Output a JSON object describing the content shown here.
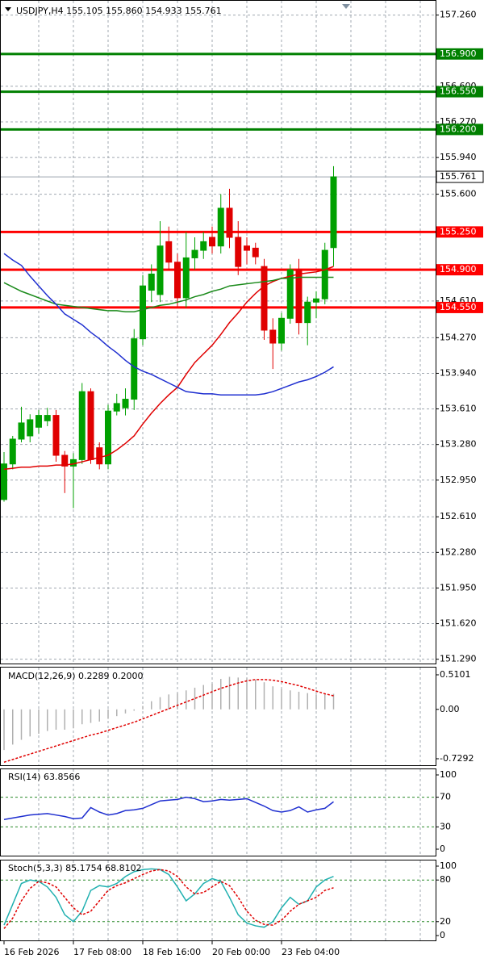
{
  "chart_data": [
    {
      "type": "candlestick",
      "title": "USDJPY,H4  155.105 155.860 154.933 155.761",
      "categories": [
        "16 Feb 2026",
        null,
        null,
        null,
        null,
        null,
        null,
        null,
        "17 Feb 08:00",
        null,
        null,
        null,
        null,
        null,
        null,
        null,
        "18 Feb 16:00",
        null,
        null,
        null,
        null,
        null,
        null,
        null,
        "20 Feb 00:00",
        null,
        null,
        null,
        null,
        null,
        null,
        null,
        "23 Feb 04:00",
        null,
        null,
        null,
        null,
        null,
        null
      ],
      "candles": {
        "up_color": "#00a000",
        "down_color": "#e00000",
        "open": [
          152.77,
          153.1,
          153.33,
          153.36,
          153.44,
          153.5,
          153.55,
          153.18,
          153.08,
          153.14,
          153.77,
          153.25,
          153.1,
          153.59,
          153.62,
          153.7,
          154.26,
          154.71,
          154.67,
          155.16,
          154.97,
          154.64,
          155.01,
          155.08,
          155.2,
          155.12,
          155.47,
          155.2,
          155.12,
          155.1,
          154.93,
          154.34,
          154.22,
          154.45,
          154.9,
          154.41,
          154.6,
          154.63,
          155.105
        ],
        "high": [
          153.21,
          153.36,
          153.63,
          153.56,
          153.6,
          153.62,
          153.6,
          153.22,
          153.2,
          153.85,
          153.8,
          153.3,
          153.65,
          153.75,
          153.8,
          154.35,
          154.85,
          154.95,
          155.35,
          155.3,
          155.05,
          155.25,
          155.2,
          155.25,
          155.3,
          155.6,
          155.65,
          155.35,
          155.2,
          155.15,
          155.0,
          154.45,
          154.5,
          154.95,
          155.0,
          154.65,
          154.7,
          155.15,
          155.86
        ],
        "low": [
          152.75,
          153.05,
          153.3,
          153.3,
          153.38,
          153.45,
          153.12,
          152.83,
          152.69,
          153.1,
          153.1,
          153.05,
          153.05,
          153.55,
          153.55,
          153.6,
          154.2,
          154.6,
          154.6,
          154.9,
          154.55,
          154.55,
          154.9,
          155.0,
          155.05,
          155.05,
          155.1,
          154.85,
          154.95,
          154.95,
          154.25,
          153.98,
          154.15,
          154.4,
          154.3,
          154.2,
          154.45,
          154.58,
          154.933
        ],
        "close": [
          153.1,
          153.33,
          153.48,
          153.51,
          153.55,
          153.55,
          153.18,
          153.08,
          153.14,
          153.77,
          153.14,
          153.1,
          153.59,
          153.66,
          153.7,
          154.26,
          154.75,
          154.86,
          155.12,
          154.97,
          154.64,
          155.01,
          155.08,
          155.16,
          155.12,
          155.47,
          155.2,
          154.93,
          155.08,
          155.02,
          154.34,
          154.22,
          154.45,
          154.9,
          154.41,
          154.6,
          154.63,
          155.08,
          155.761
        ]
      },
      "lines": [
        {
          "color": "#e00000",
          "values": [
            153.05,
            153.06,
            153.07,
            153.07,
            153.08,
            153.08,
            153.09,
            153.09,
            153.1,
            153.12,
            153.14,
            153.16,
            153.18,
            153.23,
            153.29,
            153.36,
            153.47,
            153.57,
            153.66,
            153.74,
            153.81,
            153.93,
            154.04,
            154.12,
            154.2,
            154.3,
            154.41,
            154.5,
            154.6,
            154.68,
            154.75,
            154.79,
            154.82,
            154.84,
            154.86,
            154.87,
            154.88,
            154.9,
            154.93
          ]
        },
        {
          "color": "#1a8a1a",
          "values": [
            154.78,
            154.74,
            154.7,
            154.67,
            154.64,
            154.61,
            154.58,
            154.57,
            154.56,
            154.55,
            154.54,
            154.53,
            154.52,
            154.52,
            154.51,
            154.51,
            154.53,
            154.55,
            154.57,
            154.58,
            154.6,
            154.62,
            154.65,
            154.67,
            154.7,
            154.72,
            154.75,
            154.76,
            154.77,
            154.78,
            154.79,
            154.8,
            154.82,
            154.82,
            154.83,
            154.83,
            154.83,
            154.83,
            154.83
          ]
        },
        {
          "color": "#1f2fd0",
          "values": [
            155.05,
            154.99,
            154.94,
            154.84,
            154.75,
            154.66,
            154.58,
            154.49,
            154.44,
            154.39,
            154.32,
            154.26,
            154.19,
            154.13,
            154.06,
            154.0,
            153.96,
            153.93,
            153.89,
            153.85,
            153.81,
            153.77,
            153.76,
            153.75,
            153.75,
            153.74,
            153.74,
            153.74,
            153.74,
            153.74,
            153.75,
            153.77,
            153.8,
            153.83,
            153.86,
            153.88,
            153.91,
            153.95,
            154.0
          ]
        }
      ],
      "levels": [
        {
          "value": 156.9,
          "label": "156.900",
          "color": "#008000"
        },
        {
          "value": 156.55,
          "label": "156.550",
          "color": "#008000"
        },
        {
          "value": 156.2,
          "label": "156.200",
          "color": "#008000"
        },
        {
          "value": 155.25,
          "label": "155.250",
          "color": "#ff0000"
        },
        {
          "value": 154.9,
          "label": "154.900",
          "color": "#ff0000"
        },
        {
          "value": 154.55,
          "label": "154.550",
          "color": "#ff0000"
        }
      ],
      "last_price": {
        "value": 155.761,
        "label": "155.761"
      },
      "ylim": [
        151.25,
        157.4
      ],
      "yticks": [
        {
          "value": 157.26,
          "label": "157.260"
        },
        {
          "value": 156.6,
          "label": "156.600"
        },
        {
          "value": 156.27,
          "label": "156.270"
        },
        {
          "value": 155.94,
          "label": "155.940"
        },
        {
          "value": 155.6,
          "label": "155.600"
        },
        {
          "value": 154.61,
          "label": "154.610"
        },
        {
          "value": 154.27,
          "label": "154.270"
        },
        {
          "value": 153.94,
          "label": "153.940"
        },
        {
          "value": 153.61,
          "label": "153.610"
        },
        {
          "value": 153.28,
          "label": "153.280"
        },
        {
          "value": 152.95,
          "label": "152.950"
        },
        {
          "value": 152.61,
          "label": "152.610"
        },
        {
          "value": 152.28,
          "label": "152.280"
        },
        {
          "value": 151.95,
          "label": "151.950"
        },
        {
          "value": 151.62,
          "label": "151.620"
        },
        {
          "value": 151.29,
          "label": "151.290"
        }
      ],
      "grid": true
    },
    {
      "type": "macd",
      "title": "MACD(12,26,9) 0.2289 0.2000",
      "histogram": {
        "color": "#b0b0b0",
        "values": [
          -0.6,
          -0.52,
          -0.45,
          -0.4,
          -0.36,
          -0.32,
          -0.3,
          -0.3,
          -0.28,
          -0.22,
          -0.2,
          -0.18,
          -0.14,
          -0.1,
          -0.06,
          -0.02,
          0.05,
          0.12,
          0.18,
          0.22,
          0.24,
          0.28,
          0.32,
          0.36,
          0.38,
          0.45,
          0.48,
          0.47,
          0.46,
          0.44,
          0.4,
          0.34,
          0.3,
          0.28,
          0.26,
          0.24,
          0.22,
          0.22,
          0.2289
        ]
      },
      "signal": {
        "color": "#e00000",
        "values": [
          -0.78,
          -0.74,
          -0.7,
          -0.66,
          -0.62,
          -0.58,
          -0.54,
          -0.5,
          -0.46,
          -0.42,
          -0.38,
          -0.35,
          -0.31,
          -0.27,
          -0.23,
          -0.19,
          -0.14,
          -0.09,
          -0.04,
          0.01,
          0.06,
          0.11,
          0.16,
          0.21,
          0.26,
          0.31,
          0.35,
          0.39,
          0.42,
          0.44,
          0.44,
          0.43,
          0.41,
          0.38,
          0.35,
          0.31,
          0.27,
          0.23,
          0.2
        ]
      },
      "ylim": [
        -0.825,
        0.629
      ],
      "yticks": [
        0.5101,
        {
          "value": 0,
          "label": "0.00"
        },
        -0.7292
      ]
    },
    {
      "type": "rsi",
      "title": "RSI(14) 63.8566",
      "main": {
        "color": "#1f2fd0",
        "values": [
          40,
          42,
          44,
          46,
          47,
          48,
          46,
          44,
          41,
          42,
          56,
          50,
          46,
          48,
          52,
          53,
          55,
          60,
          65,
          66,
          67,
          70,
          68,
          64,
          65,
          67,
          66,
          67,
          68,
          63,
          58,
          52,
          50,
          52,
          57,
          50,
          53,
          55,
          63.8566
        ]
      },
      "levels": [
        70,
        30
      ],
      "ylim": [
        -8.7,
        108.7
      ],
      "yticks": [
        100,
        70,
        30,
        0
      ]
    },
    {
      "type": "stochastic",
      "title": "Stoch(5,3,3) 85.1754 68.8102",
      "main": {
        "color": "#20b0b0",
        "values": [
          15,
          45,
          75,
          80,
          78,
          70,
          55,
          30,
          20,
          35,
          65,
          72,
          70,
          75,
          85,
          92,
          95,
          96,
          95,
          88,
          70,
          50,
          60,
          75,
          82,
          78,
          55,
          30,
          18,
          14,
          12,
          20,
          40,
          55,
          45,
          50,
          70,
          80,
          85.1754
        ]
      },
      "signal": {
        "color": "#e00000",
        "values": [
          10,
          25,
          50,
          68,
          78,
          76,
          70,
          55,
          40,
          30,
          35,
          50,
          65,
          72,
          76,
          82,
          88,
          93,
          95,
          93,
          85,
          70,
          60,
          62,
          70,
          78,
          72,
          55,
          35,
          22,
          16,
          15,
          22,
          35,
          45,
          50,
          55,
          65,
          68.8102
        ]
      },
      "levels": [
        80,
        20
      ],
      "ylim": [
        -7,
        109.3
      ],
      "yticks": [
        100,
        80,
        20,
        0
      ]
    }
  ]
}
